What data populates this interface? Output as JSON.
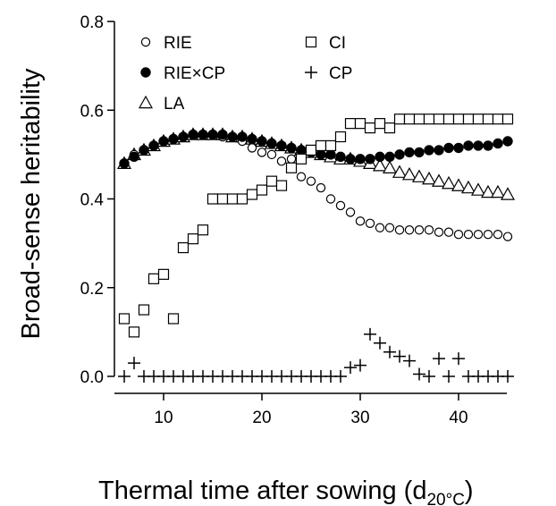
{
  "chart_data": {
    "type": "scatter",
    "xlabel": "Thermal time after sowing (d",
    "xlabel_subscript": "20°C",
    "xlabel_close": ")",
    "ylabel": "Broad-sense heritability",
    "xlim": [
      5,
      46
    ],
    "ylim": [
      -0.04,
      0.82
    ],
    "x_ticks": [
      10,
      20,
      30,
      40
    ],
    "y_ticks": [
      0.0,
      0.2,
      0.4,
      0.6,
      0.8
    ],
    "x_tick_labels": [
      "10",
      "20",
      "30",
      "40"
    ],
    "y_tick_labels": [
      "0.0",
      "0.2",
      "0.4",
      "0.6",
      "0.8"
    ],
    "grid": false,
    "legend_position": "top-left",
    "series": [
      {
        "name": "RIE",
        "marker": "open-circle",
        "x": [
          6,
          7,
          8,
          9,
          10,
          11,
          12,
          13,
          14,
          15,
          16,
          17,
          18,
          19,
          20,
          21,
          22,
          23,
          24,
          25,
          26,
          27,
          28,
          29,
          30,
          31,
          32,
          33,
          34,
          35,
          36,
          37,
          38,
          39,
          40,
          41,
          42,
          43,
          44,
          45
        ],
        "y": [
          0.48,
          0.5,
          0.51,
          0.52,
          0.53,
          0.535,
          0.54,
          0.545,
          0.545,
          0.545,
          0.54,
          0.54,
          0.53,
          0.515,
          0.505,
          0.5,
          0.485,
          0.49,
          0.45,
          0.44,
          0.425,
          0.4,
          0.385,
          0.37,
          0.35,
          0.345,
          0.335,
          0.335,
          0.33,
          0.33,
          0.33,
          0.33,
          0.325,
          0.325,
          0.32,
          0.32,
          0.32,
          0.32,
          0.32,
          0.315
        ]
      },
      {
        "name": "RIE×CP",
        "marker": "filled-circle",
        "x": [
          6,
          7,
          8,
          9,
          10,
          11,
          12,
          13,
          14,
          15,
          16,
          17,
          18,
          19,
          20,
          21,
          22,
          23,
          24,
          25,
          26,
          27,
          28,
          29,
          30,
          31,
          32,
          33,
          34,
          35,
          36,
          37,
          38,
          39,
          40,
          41,
          42,
          43,
          44,
          45
        ],
        "y": [
          0.48,
          0.495,
          0.51,
          0.52,
          0.53,
          0.535,
          0.54,
          0.545,
          0.545,
          0.545,
          0.545,
          0.54,
          0.54,
          0.535,
          0.53,
          0.525,
          0.52,
          0.515,
          0.51,
          0.505,
          0.5,
          0.5,
          0.495,
          0.49,
          0.49,
          0.49,
          0.495,
          0.495,
          0.5,
          0.505,
          0.505,
          0.51,
          0.51,
          0.515,
          0.515,
          0.52,
          0.52,
          0.52,
          0.525,
          0.53
        ]
      },
      {
        "name": "LA",
        "marker": "open-triangle",
        "x": [
          6,
          7,
          8,
          9,
          10,
          11,
          12,
          13,
          14,
          15,
          16,
          17,
          18,
          19,
          20,
          21,
          22,
          23,
          24,
          25,
          26,
          27,
          28,
          29,
          30,
          31,
          32,
          33,
          34,
          35,
          36,
          37,
          38,
          39,
          40,
          41,
          42,
          43,
          44,
          45
        ],
        "y": [
          0.48,
          0.5,
          0.51,
          0.52,
          0.53,
          0.535,
          0.54,
          0.545,
          0.545,
          0.545,
          0.545,
          0.54,
          0.54,
          0.535,
          0.53,
          0.525,
          0.52,
          0.515,
          0.51,
          0.505,
          0.5,
          0.495,
          0.49,
          0.49,
          0.485,
          0.48,
          0.475,
          0.47,
          0.46,
          0.455,
          0.45,
          0.445,
          0.44,
          0.435,
          0.43,
          0.425,
          0.42,
          0.415,
          0.415,
          0.41
        ]
      },
      {
        "name": "CI",
        "marker": "open-square",
        "x": [
          6,
          7,
          8,
          9,
          10,
          11,
          12,
          13,
          14,
          15,
          16,
          17,
          18,
          19,
          20,
          21,
          22,
          23,
          24,
          25,
          26,
          27,
          28,
          29,
          30,
          31,
          32,
          33,
          34,
          35,
          36,
          37,
          38,
          39,
          40,
          41,
          42,
          43,
          44,
          45
        ],
        "y": [
          0.13,
          0.1,
          0.15,
          0.22,
          0.23,
          0.13,
          0.29,
          0.31,
          0.33,
          0.4,
          0.4,
          0.4,
          0.4,
          0.41,
          0.42,
          0.44,
          0.43,
          0.47,
          0.49,
          0.51,
          0.52,
          0.52,
          0.54,
          0.57,
          0.57,
          0.56,
          0.57,
          0.56,
          0.58,
          0.58,
          0.58,
          0.58,
          0.58,
          0.58,
          0.58,
          0.58,
          0.58,
          0.58,
          0.58,
          0.58
        ]
      },
      {
        "name": "CP",
        "marker": "plus",
        "x": [
          6,
          7,
          8,
          9,
          10,
          11,
          12,
          13,
          14,
          15,
          16,
          17,
          18,
          19,
          20,
          21,
          22,
          23,
          24,
          25,
          26,
          27,
          28,
          29,
          30,
          31,
          32,
          33,
          34,
          35,
          36,
          37,
          38,
          39,
          40,
          41,
          42,
          43,
          44,
          45
        ],
        "y": [
          0.0,
          0.03,
          0.0,
          0.0,
          0.0,
          0.0,
          0.0,
          0.0,
          0.0,
          0.0,
          0.0,
          0.0,
          0.0,
          0.0,
          0.0,
          0.0,
          0.0,
          0.0,
          0.0,
          0.0,
          0.0,
          0.0,
          0.0,
          0.02,
          0.025,
          0.095,
          0.075,
          0.055,
          0.045,
          0.035,
          0.005,
          0.0,
          0.04,
          0.0,
          0.04,
          0.0,
          0.0,
          0.0,
          0.0,
          0.0
        ]
      }
    ]
  }
}
